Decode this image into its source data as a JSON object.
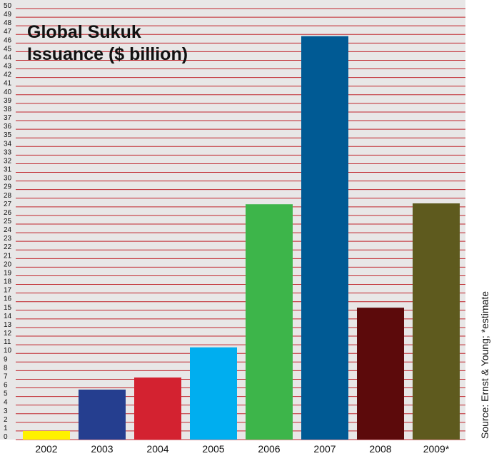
{
  "chart_data": {
    "type": "bar",
    "title_line1": "Global Sukuk",
    "title_line2": "Issuance ($ billion)",
    "source_note": "Source: Ernst & Young; *estimate",
    "categories": [
      "2002",
      "2003",
      "2004",
      "2005",
      "2006",
      "2007",
      "2008",
      "2009*"
    ],
    "values": [
      1,
      5.8,
      7.2,
      10.7,
      27.3,
      46.8,
      15.3,
      27.4
    ],
    "colors": [
      "#fff200",
      "#253e8f",
      "#d32230",
      "#00aeef",
      "#3db54a",
      "#005a94",
      "#5c0a0b",
      "#5e5a1e"
    ],
    "ylim": [
      0,
      50
    ],
    "ytick_step": 1,
    "grid": true,
    "grid_color": "#c0262d",
    "background": "#e8e7e7"
  }
}
